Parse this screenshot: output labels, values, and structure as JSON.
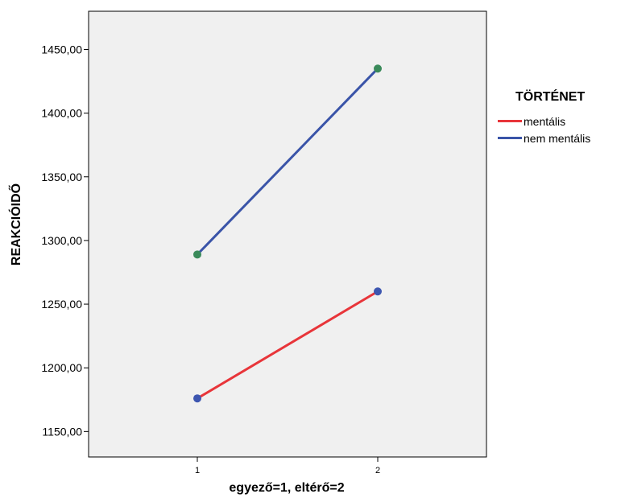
{
  "chart_data": {
    "type": "line",
    "xlabel": "egyező=1, eltérő=2",
    "ylabel": "REAKCIÓIDŐ",
    "categories": [
      "1",
      "2"
    ],
    "ylim": [
      1130,
      1480
    ],
    "yticks": [
      1150,
      1200,
      1250,
      1300,
      1350,
      1400,
      1450
    ],
    "ytick_labels": [
      "1150,00",
      "1200,00",
      "1250,00",
      "1300,00",
      "1350,00",
      "1400,00",
      "1450,00"
    ],
    "grid": false,
    "background": "#f0f0f0",
    "legend": {
      "title": "TÖRTÉNET",
      "placement": "right"
    },
    "series": [
      {
        "name": "mentális",
        "values": [
          1176,
          1260
        ],
        "color": "#e8353a",
        "marker_color": "#3d56b0"
      },
      {
        "name": "nem mentális",
        "values": [
          1289,
          1435
        ],
        "color": "#3a54a8",
        "marker_color": "#3a8a5a"
      }
    ]
  }
}
